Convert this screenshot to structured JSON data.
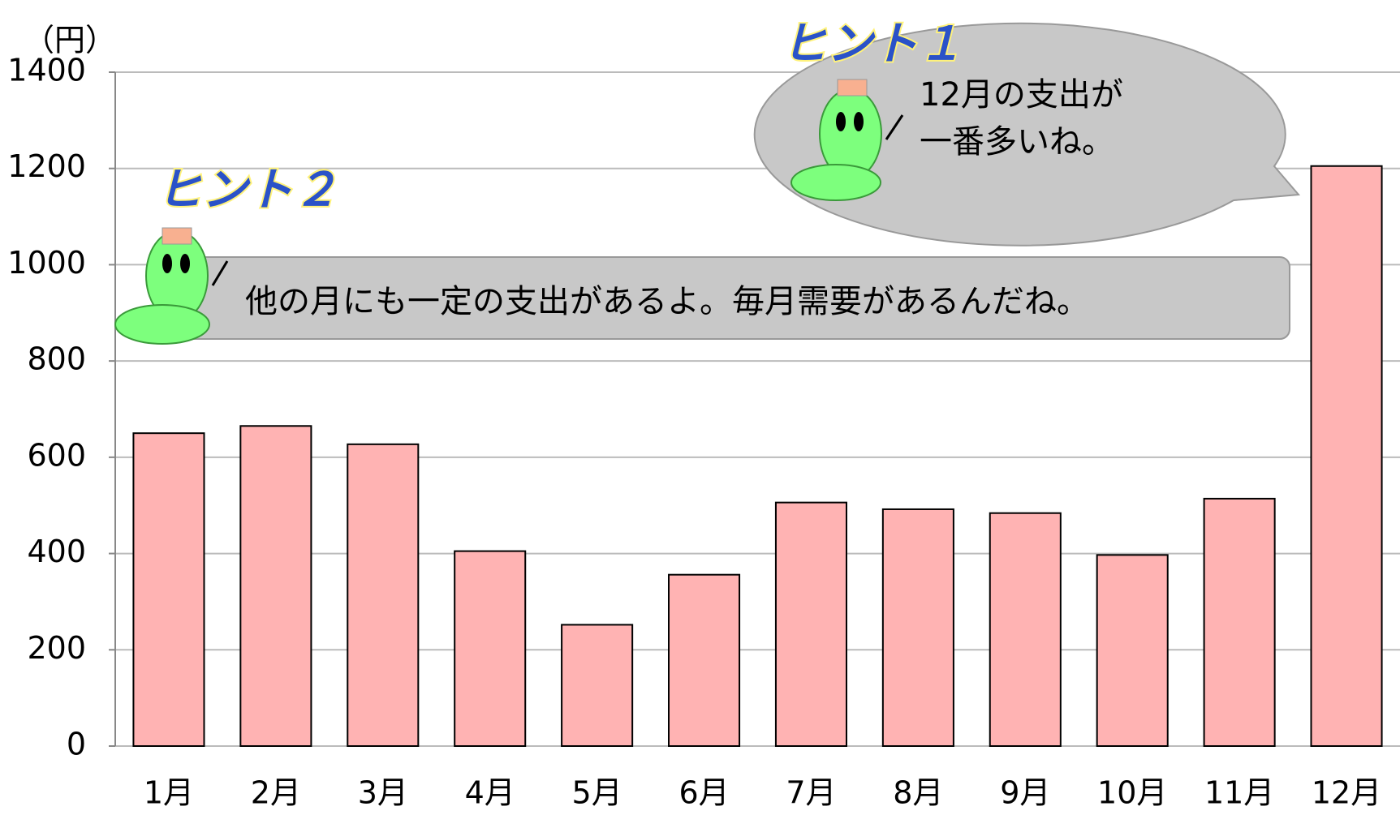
{
  "chart_data": {
    "type": "bar",
    "unit_label": "（円）",
    "categories": [
      "1月",
      "2月",
      "3月",
      "4月",
      "5月",
      "6月",
      "7月",
      "8月",
      "9月",
      "10月",
      "11月",
      "12月"
    ],
    "values": [
      650,
      665,
      627,
      405,
      252,
      356,
      506,
      492,
      484,
      397,
      514,
      1205
    ],
    "color": "#ffb3b3",
    "ylim": [
      0,
      1400
    ],
    "yticks": [
      0,
      200,
      400,
      600,
      800,
      1000,
      1200,
      1400
    ],
    "grid": true,
    "annotations": {
      "hint1": {
        "title": "ヒント１",
        "lines": [
          "12月の支出が",
          "一番多いね。"
        ]
      },
      "hint2": {
        "title": "ヒント２",
        "text": "他の月にも一定の支出があるよ。毎月需要があるんだね。"
      }
    }
  }
}
